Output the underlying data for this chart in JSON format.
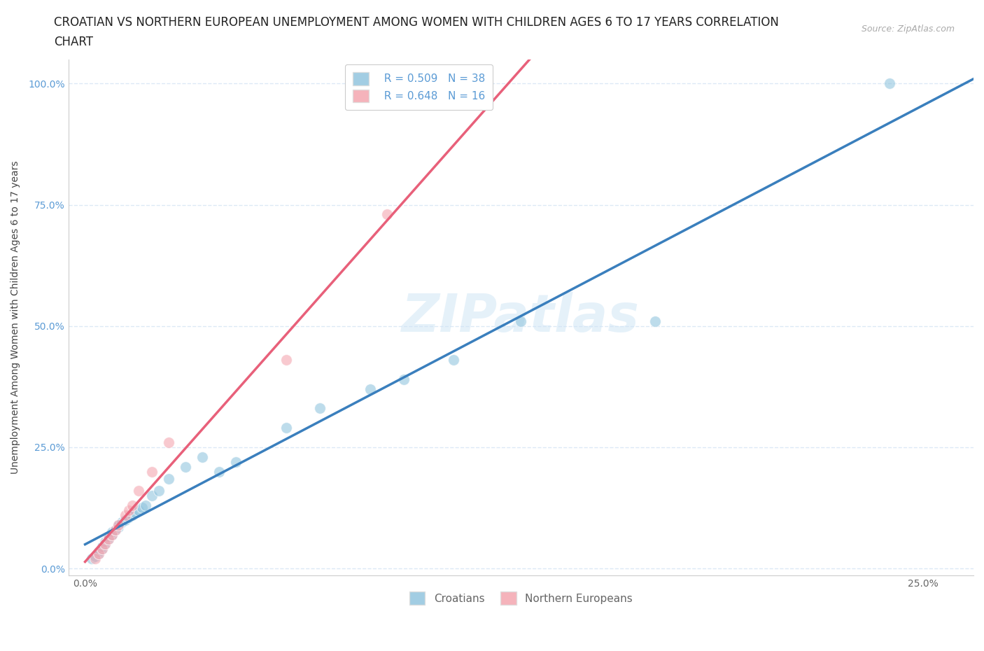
{
  "title_line1": "CROATIAN VS NORTHERN EUROPEAN UNEMPLOYMENT AMONG WOMEN WITH CHILDREN AGES 6 TO 17 YEARS CORRELATION",
  "title_line2": "CHART",
  "source": "Source: ZipAtlas.com",
  "ylabel": "Unemployment Among Women with Children Ages 6 to 17 years",
  "legend_labels": [
    "Croatians",
    "Northern Europeans"
  ],
  "legend_r_blue": "R = 0.509",
  "legend_n_blue": "N = 38",
  "legend_r_pink": "R = 0.648",
  "legend_n_pink": "N = 16",
  "blue_color": "#92c5de",
  "pink_color": "#f4a6b0",
  "blue_line_color": "#3a7fbd",
  "pink_line_color": "#e8607a",
  "blue_line_dash": "#c8d8e8",
  "watermark": "ZIPatlas",
  "croatian_x": [
    0.002,
    0.003,
    0.004,
    0.004,
    0.005,
    0.005,
    0.006,
    0.006,
    0.007,
    0.007,
    0.008,
    0.008,
    0.009,
    0.01,
    0.01,
    0.011,
    0.012,
    0.013,
    0.014,
    0.015,
    0.016,
    0.017,
    0.018,
    0.02,
    0.022,
    0.025,
    0.03,
    0.035,
    0.04,
    0.045,
    0.06,
    0.07,
    0.085,
    0.095,
    0.11,
    0.13,
    0.17,
    0.24
  ],
  "croatian_y": [
    0.02,
    0.025,
    0.03,
    0.035,
    0.04,
    0.045,
    0.05,
    0.055,
    0.06,
    0.065,
    0.07,
    0.075,
    0.08,
    0.085,
    0.09,
    0.095,
    0.1,
    0.105,
    0.11,
    0.115,
    0.12,
    0.125,
    0.13,
    0.15,
    0.16,
    0.185,
    0.21,
    0.23,
    0.2,
    0.22,
    0.29,
    0.33,
    0.37,
    0.39,
    0.43,
    0.51,
    0.51,
    1.0
  ],
  "northern_x": [
    0.003,
    0.004,
    0.005,
    0.006,
    0.007,
    0.008,
    0.009,
    0.01,
    0.012,
    0.013,
    0.014,
    0.016,
    0.02,
    0.025,
    0.06,
    0.09
  ],
  "northern_y": [
    0.02,
    0.03,
    0.04,
    0.05,
    0.06,
    0.07,
    0.08,
    0.09,
    0.11,
    0.12,
    0.13,
    0.16,
    0.2,
    0.26,
    0.43,
    0.73
  ],
  "xlim": [
    -0.005,
    0.265
  ],
  "ylim": [
    -0.015,
    1.05
  ],
  "x_ticks": [
    0.0,
    0.25
  ],
  "x_tick_labels": [
    "0.0%",
    "25.0%"
  ],
  "y_ticks": [
    0.0,
    0.25,
    0.5,
    0.75,
    1.0
  ],
  "y_tick_labels": [
    "0.0%",
    "25.0%",
    "50.0%",
    "75.0%",
    "100.0%"
  ],
  "background_color": "#ffffff",
  "grid_color": "#dce9f5",
  "title_fontsize": 12,
  "axis_label_fontsize": 10,
  "tick_fontsize": 10,
  "legend_fontsize": 11
}
